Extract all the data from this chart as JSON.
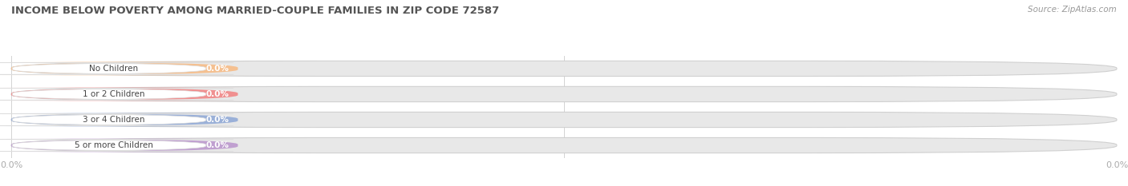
{
  "title": "INCOME BELOW POVERTY AMONG MARRIED-COUPLE FAMILIES IN ZIP CODE 72587",
  "source": "Source: ZipAtlas.com",
  "categories": [
    "No Children",
    "1 or 2 Children",
    "3 or 4 Children",
    "5 or more Children"
  ],
  "values": [
    0.0,
    0.0,
    0.0,
    0.0
  ],
  "bar_colors": [
    "#f5c090",
    "#f09090",
    "#9ab0d8",
    "#c0a0d0"
  ],
  "bar_bg_color": "#e8e8e8",
  "bar_bg_edge_color": "#d0d0d0",
  "label_text_color": "#ffffff",
  "category_text_color": "#444444",
  "value_label_color_on_white": "#999999",
  "title_color": "#555555",
  "source_color": "#999999",
  "background_color": "#ffffff",
  "figsize": [
    14.06,
    2.33
  ],
  "dpi": 100,
  "n_bars": 4,
  "tick_label_color": "#aaaaaa",
  "grid_color": "#cccccc"
}
